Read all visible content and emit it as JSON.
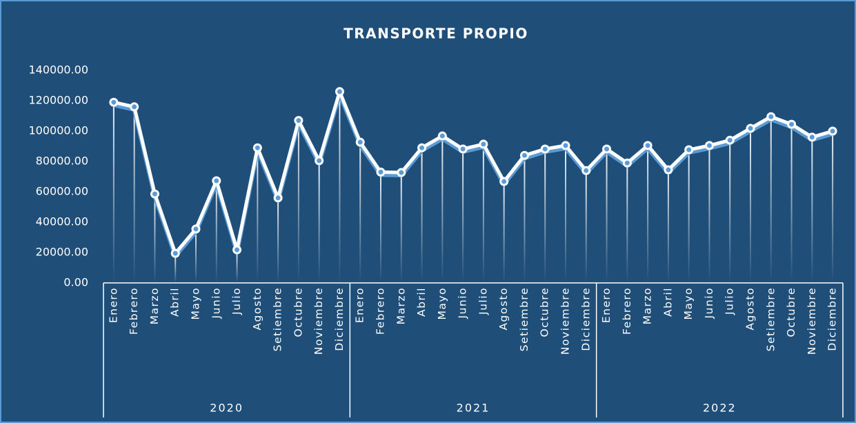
{
  "chart_data": {
    "type": "line",
    "title": "TRANSPORTE PROPIO",
    "categories": [
      "Enero",
      "Febrero",
      "Marzo",
      "Abril",
      "Mayo",
      "Junio",
      "Julio",
      "Agosto",
      "Setiembre",
      "Octubre",
      "Noviembre",
      "Diciembre",
      "Enero",
      "Febrero",
      "Marzo",
      "Abril",
      "Mayo",
      "Junio",
      "Julio",
      "Agosto",
      "Setiembre",
      "Octubre",
      "Noviembre",
      "Diciembre",
      "Enero",
      "Febrero",
      "Marzo",
      "Abril",
      "Mayo",
      "Junio",
      "Julio",
      "Agosto",
      "Setiembre",
      "Octubre",
      "Noviembre",
      "Diciembre"
    ],
    "groups": [
      "2020",
      "2021",
      "2022"
    ],
    "values": [
      119000,
      116000,
      58600,
      19500,
      35500,
      67300,
      21800,
      89000,
      56000,
      107000,
      80500,
      126000,
      92700,
      73000,
      72700,
      89000,
      96800,
      88200,
      91400,
      66800,
      84000,
      88200,
      90500,
      74000,
      88200,
      79000,
      90500,
      74500,
      87700,
      90500,
      94000,
      101800,
      109500,
      104500,
      96000,
      100000
    ],
    "color": "#ffffff",
    "shadow_color": "#5b9bd5",
    "ylim": [
      0,
      140000
    ],
    "yticks": [
      {
        "value": 0,
        "label": "0.00"
      },
      {
        "value": 20000,
        "label": "20000.00"
      },
      {
        "value": 40000,
        "label": "40000.00"
      },
      {
        "value": 60000,
        "label": "60000.00"
      },
      {
        "value": 80000,
        "label": "80000.00"
      },
      {
        "value": 100000,
        "label": "100000.00"
      },
      {
        "value": 120000,
        "label": "120000.00"
      },
      {
        "value": 140000,
        "label": "140000.00"
      }
    ]
  }
}
